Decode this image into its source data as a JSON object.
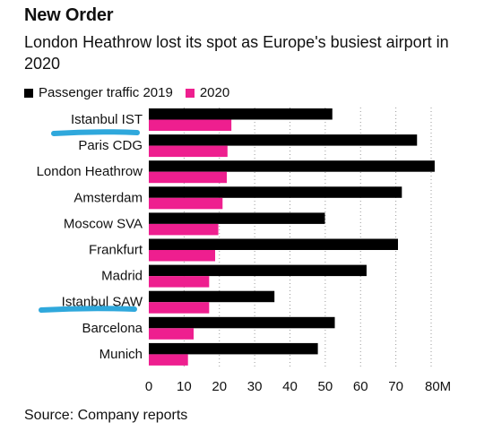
{
  "header": {
    "title": "New Order",
    "subtitle": "London Heathrow lost its spot as Europe's busiest airport in 2020"
  },
  "legend": {
    "series_2019": "Passenger traffic 2019",
    "series_2020": "2020"
  },
  "footer": {
    "source": "Source: Company reports"
  },
  "colors": {
    "series_2019": "#000000",
    "series_2020": "#ee1f8f",
    "highlight": "#2fa8dc"
  },
  "chart_data": {
    "type": "bar",
    "orientation": "horizontal",
    "title": "New Order",
    "subtitle": "London Heathrow lost its spot as Europe's busiest airport in 2020",
    "categories": [
      "Istanbul IST",
      "Paris CDG",
      "London Heathrow",
      "Amsterdam",
      "Moscow SVA",
      "Frankfurt",
      "Madrid",
      "Istanbul SAW",
      "Barcelona",
      "Munich"
    ],
    "series": [
      {
        "name": "Passenger traffic 2019",
        "values": [
          52,
          76,
          81,
          71.7,
          49.9,
          70.6,
          61.7,
          35.6,
          52.7,
          47.9
        ]
      },
      {
        "name": "2020",
        "values": [
          23.4,
          22.3,
          22.1,
          20.9,
          19.7,
          18.8,
          17.1,
          17.1,
          12.7,
          11.1
        ]
      }
    ],
    "xlim": [
      0,
      80
    ],
    "xticks": [
      "0",
      "10",
      "20",
      "30",
      "40",
      "50",
      "60",
      "70",
      "80M"
    ],
    "highlighted_categories": [
      "Istanbul IST",
      "Istanbul SAW"
    ],
    "legend_position": "top-left",
    "grid": "vertical dotted lines"
  }
}
